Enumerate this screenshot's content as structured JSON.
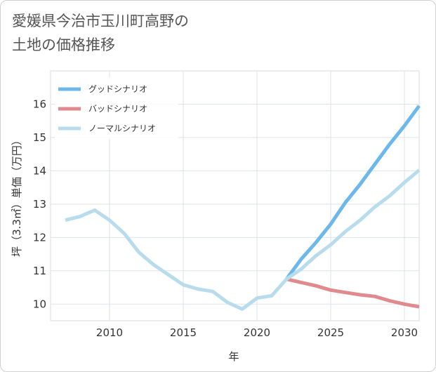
{
  "chart_data": {
    "type": "line",
    "title_lines": [
      "愛媛県今治市玉川町高野の",
      "土地の価格推移"
    ],
    "xlabel": "年",
    "ylabel": "坪（3.3㎡）単価（万円）",
    "xlim": [
      2006,
      2031
    ],
    "ylim": [
      9.5,
      17
    ],
    "x_ticks": [
      2010,
      2015,
      2020,
      2025,
      2030
    ],
    "y_ticks": [
      10,
      11,
      12,
      13,
      14,
      15,
      16
    ],
    "grid": true,
    "legend_position": "top-left",
    "series": [
      {
        "name": "グッドシナリオ",
        "color": "#6cb8ea",
        "x": [
          2022,
          2023,
          2024,
          2025,
          2026,
          2027,
          2028,
          2029,
          2030,
          2031
        ],
        "values": [
          10.75,
          11.35,
          11.85,
          12.4,
          13.05,
          13.6,
          14.2,
          14.8,
          15.35,
          15.95
        ]
      },
      {
        "name": "バッドシナリオ",
        "color": "#e08a8e",
        "x": [
          2022,
          2023,
          2024,
          2025,
          2026,
          2027,
          2028,
          2029,
          2030,
          2031
        ],
        "values": [
          10.75,
          10.65,
          10.55,
          10.42,
          10.35,
          10.28,
          10.23,
          10.1,
          10.0,
          9.92
        ]
      },
      {
        "name": "ノーマルシナリオ",
        "color": "#b9dcec",
        "x": [
          2007,
          2008,
          2009,
          2010,
          2011,
          2012,
          2013,
          2014,
          2015,
          2016,
          2017,
          2018,
          2019,
          2020,
          2021,
          2022,
          2023,
          2024,
          2025,
          2026,
          2027,
          2028,
          2029,
          2030,
          2031
        ],
        "values": [
          12.52,
          12.63,
          12.82,
          12.52,
          12.12,
          11.55,
          11.18,
          10.88,
          10.58,
          10.45,
          10.38,
          10.05,
          9.85,
          10.18,
          10.25,
          10.75,
          11.05,
          11.45,
          11.78,
          12.18,
          12.52,
          12.92,
          13.25,
          13.65,
          14.02
        ]
      }
    ]
  }
}
